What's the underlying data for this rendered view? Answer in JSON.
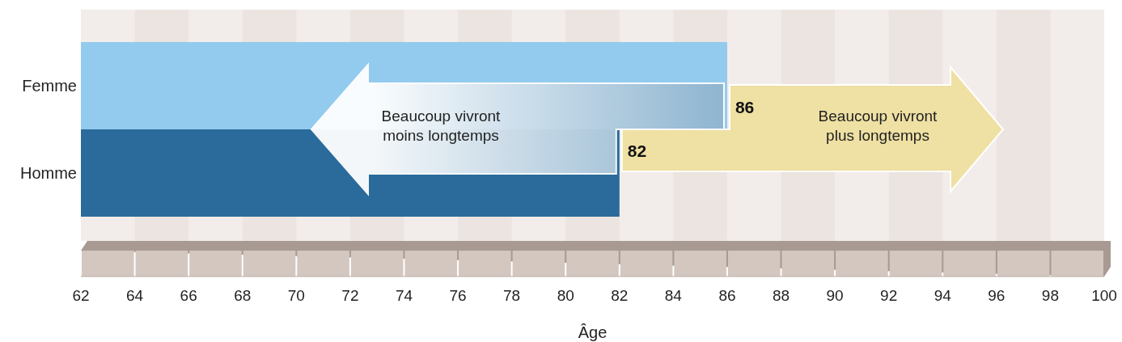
{
  "chart_data": {
    "type": "bar",
    "orientation": "horizontal",
    "categories": [
      "Femme",
      "Homme"
    ],
    "values": [
      86,
      82
    ],
    "colors": [
      "#93cbee",
      "#2a6b9b"
    ],
    "xlim": [
      62,
      100
    ],
    "xticks": [
      62,
      64,
      66,
      68,
      70,
      72,
      74,
      76,
      78,
      80,
      82,
      84,
      86,
      88,
      90,
      92,
      94,
      96,
      98,
      100
    ],
    "xlabel": "Âge",
    "data_labels": true,
    "annotations": [
      "Beaucoup vivront moins longtemps",
      "Beaucoup vivront plus longtemps"
    ]
  }
}
